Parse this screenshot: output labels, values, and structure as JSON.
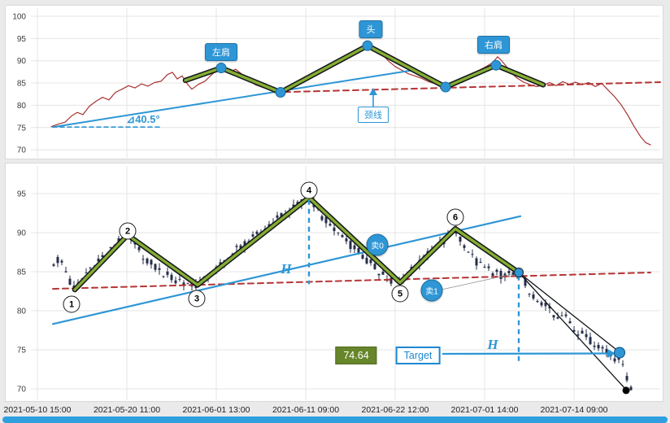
{
  "colors": {
    "accent_blue": "#2e96d5",
    "line_red": "#a83232",
    "dash_red": "#b63434",
    "zigzag_green": "#85ad33",
    "candle": "#262e4a",
    "olive_box": "#67862b",
    "grid": "#e4e4e4",
    "scrollbar": "#2f9fe0"
  },
  "axes": {
    "top_yticks": [
      "100",
      "95",
      "90",
      "85",
      "80",
      "75",
      "70"
    ],
    "bottom_yticks": [
      "95",
      "90",
      "85",
      "80",
      "75",
      "70"
    ],
    "xticks": [
      "2021-05-10 15:00",
      "2021-05-20 11:00",
      "2021-06-01 13:00",
      "2021-06-11 09:00",
      "2021-06-22 12:00",
      "2021-07-01 14:00",
      "2021-07-14 09:00"
    ]
  },
  "annotations": {
    "left_shoulder": "左肩",
    "head": "头",
    "right_shoulder": "右肩",
    "neckline": "颈线",
    "angle": "⊿40.5°",
    "h_upper": "H",
    "h_lower": "H",
    "target_value": "74.64",
    "target_label": "Target",
    "sell0": "卖0",
    "sell1": "卖1",
    "wave_markers": [
      "1",
      "2",
      "3",
      "4",
      "5",
      "6"
    ]
  },
  "chart_data": [
    {
      "panel": "top",
      "type": "line",
      "title": "head-and-shoulders pattern overview",
      "ylim": [
        68.5,
        101
      ],
      "yticks": [
        100,
        95,
        90,
        85,
        80,
        75,
        70
      ],
      "series": {
        "price": [
          [
            63,
            75.2
          ],
          [
            72,
            75.8
          ],
          [
            80,
            76.2
          ],
          [
            88,
            77.6
          ],
          [
            95,
            78.4
          ],
          [
            102,
            77.9
          ],
          [
            110,
            79.8
          ],
          [
            118,
            80.9
          ],
          [
            126,
            81.8
          ],
          [
            134,
            81.2
          ],
          [
            142,
            82.9
          ],
          [
            150,
            83.6
          ],
          [
            158,
            84.4
          ],
          [
            166,
            83.9
          ],
          [
            174,
            84.8
          ],
          [
            182,
            84.3
          ],
          [
            190,
            85.1
          ],
          [
            198,
            85.4
          ],
          [
            206,
            86.9
          ],
          [
            212,
            87.4
          ],
          [
            218,
            85.9
          ],
          [
            224,
            86.6
          ],
          [
            230,
            84.9
          ],
          [
            236,
            83.6
          ],
          [
            244,
            84.7
          ],
          [
            252,
            85.4
          ],
          [
            260,
            86.8
          ],
          [
            268,
            88.2
          ],
          [
            274,
            88.7
          ],
          [
            282,
            87.4
          ],
          [
            290,
            88.1
          ],
          [
            298,
            86.9
          ],
          [
            306,
            85.7
          ],
          [
            314,
            84.6
          ],
          [
            322,
            84.1
          ],
          [
            330,
            83.6
          ],
          [
            338,
            83.1
          ],
          [
            346,
            83.4
          ],
          [
            354,
            83.9
          ],
          [
            362,
            84.7
          ],
          [
            370,
            85.8
          ],
          [
            378,
            86.4
          ],
          [
            386,
            87.2
          ],
          [
            394,
            87.9
          ],
          [
            402,
            88.6
          ],
          [
            410,
            89.3
          ],
          [
            418,
            90.1
          ],
          [
            426,
            90.8
          ],
          [
            434,
            91.6
          ],
          [
            442,
            92.4
          ],
          [
            448,
            93.1
          ],
          [
            452,
            92.6
          ],
          [
            458,
            93.4
          ],
          [
            464,
            92.2
          ],
          [
            470,
            91.4
          ],
          [
            478,
            89.9
          ],
          [
            486,
            88.7
          ],
          [
            494,
            87.9
          ],
          [
            502,
            87.1
          ],
          [
            510,
            86.6
          ],
          [
            518,
            86.1
          ],
          [
            526,
            85.4
          ],
          [
            534,
            84.9
          ],
          [
            542,
            84.4
          ],
          [
            550,
            84.1
          ],
          [
            558,
            84.9
          ],
          [
            566,
            85.7
          ],
          [
            574,
            86.4
          ],
          [
            582,
            87.1
          ],
          [
            590,
            87.9
          ],
          [
            598,
            88.7
          ],
          [
            606,
            89.6
          ],
          [
            612,
            90.9
          ],
          [
            616,
            90.2
          ],
          [
            622,
            88.9
          ],
          [
            628,
            87.4
          ],
          [
            636,
            86.1
          ],
          [
            644,
            85.2
          ],
          [
            652,
            84.6
          ],
          [
            660,
            84.2
          ],
          [
            668,
            84.5
          ],
          [
            676,
            85.1
          ],
          [
            684,
            84.4
          ],
          [
            692,
            85.3
          ],
          [
            700,
            84.7
          ],
          [
            708,
            85.2
          ],
          [
            716,
            84.6
          ],
          [
            724,
            85.1
          ],
          [
            732,
            84.2
          ],
          [
            740,
            84.9
          ],
          [
            748,
            83.4
          ],
          [
            756,
            81.9
          ],
          [
            764,
            80.1
          ],
          [
            772,
            77.8
          ],
          [
            780,
            75.2
          ],
          [
            788,
            72.9
          ],
          [
            794,
            71.6
          ],
          [
            800,
            71.1
          ]
        ],
        "zigzag": [
          [
            228,
            85.6
          ],
          [
            272,
            88.4
          ],
          [
            345,
            82.9
          ],
          [
            452,
            93.4
          ],
          [
            548,
            84.1
          ],
          [
            610,
            89.0
          ],
          [
            668,
            84.6
          ]
        ],
        "trendline": [
          [
            65,
            75.1
          ],
          [
            505,
            87.8
          ]
        ],
        "angle_baseline": [
          [
            65,
            75.1
          ],
          [
            196,
            75.1
          ]
        ],
        "neckline": [
          [
            338,
            82.9
          ],
          [
            812,
            85.2
          ]
        ]
      },
      "dots": [
        [
          272,
          88.4
        ],
        [
          345,
          82.9
        ],
        [
          452,
          93.4
        ],
        [
          548,
          84.1
        ],
        [
          610,
          89.0
        ]
      ],
      "angle_deg": 40.5
    },
    {
      "panel": "bottom",
      "type": "candlestick",
      "title": "wave count with sell signals and target projection",
      "ylim": [
        68,
        98.5
      ],
      "yticks": [
        95,
        90,
        85,
        80,
        75,
        70
      ],
      "candle_anchor": [
        [
          66,
          86.3
        ],
        [
          74,
          86.8
        ],
        [
          80,
          85.4
        ],
        [
          86,
          83.6
        ],
        [
          92,
          82.7
        ],
        [
          100,
          83.9
        ],
        [
          110,
          85.4
        ],
        [
          120,
          86.1
        ],
        [
          130,
          87.2
        ],
        [
          140,
          88.1
        ],
        [
          150,
          89.2
        ],
        [
          157,
          89.7
        ],
        [
          165,
          88.6
        ],
        [
          175,
          87.2
        ],
        [
          185,
          86.1
        ],
        [
          195,
          85.2
        ],
        [
          205,
          84.6
        ],
        [
          215,
          84.1
        ],
        [
          225,
          83.8
        ],
        [
          235,
          83.5
        ],
        [
          243,
          83.3
        ],
        [
          252,
          83.9
        ],
        [
          262,
          84.9
        ],
        [
          272,
          85.9
        ],
        [
          282,
          86.9
        ],
        [
          292,
          87.9
        ],
        [
          302,
          88.4
        ],
        [
          312,
          89.3
        ],
        [
          322,
          90.2
        ],
        [
          332,
          91.2
        ],
        [
          342,
          91.8
        ],
        [
          352,
          92.4
        ],
        [
          362,
          93.2
        ],
        [
          372,
          93.9
        ],
        [
          380,
          94.5
        ],
        [
          388,
          93.4
        ],
        [
          396,
          92.1
        ],
        [
          404,
          91.1
        ],
        [
          412,
          90.2
        ],
        [
          420,
          89.6
        ],
        [
          428,
          88.7
        ],
        [
          436,
          88.1
        ],
        [
          444,
          87.2
        ],
        [
          452,
          86.3
        ],
        [
          460,
          85.7
        ],
        [
          468,
          84.8
        ],
        [
          476,
          84.2
        ],
        [
          484,
          83.9
        ],
        [
          492,
          83.6
        ],
        [
          500,
          84.4
        ],
        [
          508,
          85.3
        ],
        [
          516,
          86.2
        ],
        [
          524,
          86.9
        ],
        [
          532,
          87.8
        ],
        [
          540,
          88.4
        ],
        [
          548,
          89.3
        ],
        [
          556,
          89.9
        ],
        [
          560,
          90.3
        ],
        [
          568,
          89.1
        ],
        [
          576,
          87.7
        ],
        [
          584,
          86.3
        ],
        [
          592,
          85.7
        ],
        [
          600,
          85.2
        ],
        [
          608,
          84.9
        ],
        [
          616,
          84.6
        ],
        [
          624,
          84.7
        ],
        [
          632,
          84.8
        ],
        [
          638,
          84.9
        ],
        [
          646,
          83.6
        ],
        [
          654,
          82.1
        ],
        [
          662,
          80.6
        ],
        [
          670,
          81.2
        ],
        [
          678,
          79.6
        ],
        [
          686,
          78.9
        ],
        [
          694,
          79.5
        ],
        [
          702,
          78.4
        ],
        [
          710,
          77.1
        ],
        [
          718,
          77.7
        ],
        [
          726,
          76.2
        ],
        [
          734,
          75.3
        ],
        [
          742,
          75.8
        ],
        [
          750,
          74.4
        ],
        [
          758,
          73.7
        ],
        [
          764,
          74.1
        ],
        [
          770,
          71.9
        ],
        [
          775,
          70.3
        ]
      ],
      "zigzag": [
        [
          92,
          82.7
        ],
        [
          157,
          89.7
        ],
        [
          243,
          83.3
        ],
        [
          380,
          94.5
        ],
        [
          492,
          83.6
        ],
        [
          560,
          90.5
        ],
        [
          638,
          84.9
        ]
      ],
      "trendline": [
        [
          65,
          78.3
        ],
        [
          640,
          92.1
        ]
      ],
      "neckline": [
        [
          65,
          82.8
        ],
        [
          800,
          84.9
        ]
      ],
      "h_lines": [
        {
          "x": 380,
          "from": 94.2,
          "to": 83.4
        },
        {
          "x": 638,
          "from": 84.5,
          "to": 73.5
        }
      ],
      "projections": [
        [
          [
            638,
            84.9
          ],
          [
            757,
            75.1
          ]
        ],
        [
          [
            638,
            84.9
          ],
          [
            769,
            70.0
          ]
        ]
      ],
      "target": {
        "price": 74.64,
        "dot": [
          762,
          74.64
        ],
        "end_dot": [
          770,
          69.8
        ]
      }
    }
  ]
}
